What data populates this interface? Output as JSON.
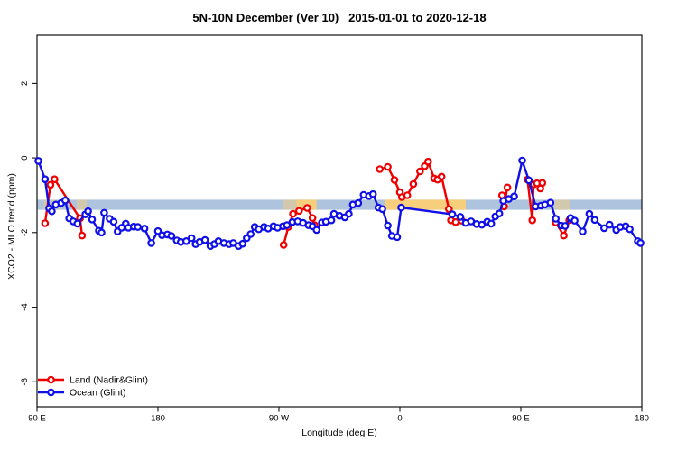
{
  "title": "5N-10N December (Ver 10)   2015-01-01 to 2020-12-18",
  "chart_data": {
    "type": "line",
    "title": "5N-10N December (Ver 10)   2015-01-01 to 2020-12-18",
    "xlabel": "Longitude (deg E)",
    "ylabel": "XCO2 - MLO trend (ppm)",
    "xlim": [
      90,
      540
    ],
    "ylim": [
      -6.67,
      3.29
    ],
    "grid": false,
    "x_ticks": [
      {
        "v": 90,
        "label": "90 E"
      },
      {
        "v": 180,
        "label": "180"
      },
      {
        "v": 270,
        "label": "90 W"
      },
      {
        "v": 360,
        "label": "0"
      },
      {
        "v": 450,
        "label": "90 E"
      },
      {
        "v": 540,
        "label": "180"
      }
    ],
    "y_ticks": [
      {
        "v": 2,
        "label": "2"
      },
      {
        "v": 0,
        "label": "0"
      },
      {
        "v": -2,
        "label": "-2"
      },
      {
        "v": -4,
        "label": "-4"
      },
      {
        "v": -6,
        "label": "-6"
      }
    ],
    "geo_band": {
      "description": "world coastline strip at 5N-10N drawn across plot",
      "value_top": -1.12,
      "value_bottom": -1.39,
      "ocean_color": "#aec3de",
      "land_color": "#f6ce7c",
      "land_segments": [
        [
          283,
          298
        ],
        [
          348.5,
          409
        ]
      ],
      "faint_land_segments": [
        [
          95,
          99
        ],
        [
          100.5,
          104
        ],
        [
          105.5,
          108
        ],
        [
          119.5,
          127
        ],
        [
          273,
          283
        ],
        [
          475,
          487
        ]
      ]
    },
    "legend": {
      "position": "bottom-left",
      "entries": [
        "Land (Nadir&Glint)",
        "Ocean (Glint)"
      ]
    },
    "series": [
      {
        "name": "Land (Nadir&Glint)",
        "color": "#ee0000",
        "marker": "open-circle",
        "points": [
          [
            96,
            -1.75
          ],
          [
            100,
            -0.72
          ],
          [
            103,
            -0.57
          ],
          [
            122,
            -1.62
          ],
          [
            123.5,
            -2.08
          ],
          null,
          [
            273.5,
            -2.33
          ],
          [
            277,
            -1.85
          ],
          [
            280.5,
            -1.5
          ],
          [
            285,
            -1.42
          ],
          [
            291,
            -1.34
          ],
          [
            295,
            -1.61
          ],
          [
            296.5,
            -1.8
          ],
          null,
          [
            345,
            -0.3
          ],
          [
            351,
            -0.24
          ],
          [
            356,
            -0.59
          ],
          [
            360,
            -0.92
          ],
          [
            361.5,
            -1.05
          ],
          [
            365.5,
            -1.0
          ],
          [
            370,
            -0.7
          ],
          [
            375,
            -0.36
          ],
          [
            378.5,
            -0.22
          ],
          [
            381,
            -0.1
          ],
          [
            385.5,
            -0.55
          ],
          [
            388,
            -0.58
          ],
          [
            391,
            -0.5
          ],
          [
            396.5,
            -1.37
          ],
          [
            398,
            -1.67
          ],
          [
            401.5,
            -1.72
          ],
          [
            406,
            -1.68
          ],
          null,
          [
            436,
            -1.0
          ],
          [
            437.5,
            -1.3
          ],
          [
            440,
            -0.79
          ],
          null,
          [
            455,
            -0.58
          ],
          [
            458.5,
            -1.67
          ],
          [
            459.5,
            -0.71
          ],
          [
            462,
            -0.68
          ],
          [
            464.5,
            -0.82
          ],
          [
            466,
            -0.67
          ],
          null,
          [
            476,
            -1.73
          ],
          [
            482,
            -2.08
          ],
          [
            486,
            -1.67
          ]
        ]
      },
      {
        "name": "Ocean (Glint)",
        "color": "#0f0fe8",
        "marker": "open-circle",
        "points": [
          [
            91,
            -0.08
          ],
          [
            96,
            -0.57
          ],
          [
            99,
            -1.35
          ],
          [
            101,
            -1.43
          ],
          [
            104,
            -1.25
          ],
          [
            108,
            -1.21
          ],
          [
            111,
            -1.14
          ],
          [
            114,
            -1.62
          ],
          [
            117,
            -1.7
          ],
          [
            120,
            -1.76
          ],
          [
            126,
            -1.51
          ],
          [
            128,
            -1.43
          ],
          [
            131,
            -1.65
          ],
          [
            136,
            -1.95
          ],
          [
            138,
            -2.0
          ],
          [
            140,
            -1.47
          ],
          [
            144,
            -1.63
          ],
          [
            147,
            -1.71
          ],
          [
            150,
            -1.97
          ],
          [
            153,
            -1.87
          ],
          [
            156,
            -1.76
          ],
          [
            158,
            -1.87
          ],
          [
            162,
            -1.84
          ],
          [
            165,
            -1.85
          ],
          [
            170,
            -1.89
          ],
          [
            175,
            -2.28
          ],
          [
            180,
            -1.96
          ],
          [
            183,
            -2.07
          ],
          [
            187,
            -2.05
          ],
          [
            190,
            -2.09
          ],
          [
            194,
            -2.21
          ],
          [
            197,
            -2.25
          ],
          [
            201,
            -2.23
          ],
          [
            205,
            -2.15
          ],
          [
            208,
            -2.31
          ],
          [
            211,
            -2.25
          ],
          [
            215,
            -2.2
          ],
          [
            219,
            -2.36
          ],
          [
            222,
            -2.31
          ],
          [
            225,
            -2.23
          ],
          [
            229,
            -2.28
          ],
          [
            233,
            -2.31
          ],
          [
            236,
            -2.28
          ],
          [
            240,
            -2.36
          ],
          [
            243,
            -2.3
          ],
          [
            246,
            -2.15
          ],
          [
            249,
            -2.04
          ],
          [
            252,
            -1.85
          ],
          [
            255,
            -1.91
          ],
          [
            259,
            -1.85
          ],
          [
            262,
            -1.89
          ],
          [
            266,
            -1.83
          ],
          [
            269,
            -1.87
          ],
          [
            273,
            -1.83
          ],
          [
            276,
            -1.8
          ],
          [
            280,
            -1.72
          ],
          [
            284,
            -1.7
          ],
          [
            288,
            -1.74
          ],
          [
            292,
            -1.8
          ],
          [
            295,
            -1.83
          ],
          [
            298,
            -1.93
          ],
          [
            302,
            -1.73
          ],
          [
            305,
            -1.71
          ],
          [
            309,
            -1.67
          ],
          [
            311,
            -1.5
          ],
          [
            315,
            -1.55
          ],
          [
            319,
            -1.59
          ],
          [
            322,
            -1.5
          ],
          [
            325,
            -1.25
          ],
          [
            329,
            -1.21
          ],
          [
            333,
            -0.99
          ],
          [
            337,
            -1.02
          ],
          [
            340,
            -0.97
          ],
          [
            344,
            -1.33
          ],
          [
            347,
            -1.37
          ],
          [
            351,
            -1.81
          ],
          [
            354,
            -2.09
          ],
          [
            358,
            -2.12
          ],
          [
            361,
            -1.33
          ],
          [
            399,
            -1.51
          ],
          [
            405,
            -1.58
          ],
          [
            409,
            -1.74
          ],
          [
            413,
            -1.7
          ],
          [
            417,
            -1.77
          ],
          [
            421,
            -1.79
          ],
          [
            425,
            -1.71
          ],
          [
            428,
            -1.76
          ],
          [
            431,
            -1.57
          ],
          [
            434,
            -1.49
          ],
          [
            437,
            -1.15
          ],
          [
            441,
            -1.1
          ],
          [
            445,
            -1.03
          ],
          [
            451,
            -0.07
          ],
          [
            456,
            -0.6
          ],
          [
            461,
            -1.3
          ],
          [
            465,
            -1.28
          ],
          [
            468,
            -1.25
          ],
          [
            472,
            -1.2
          ],
          [
            476,
            -1.63
          ],
          [
            480,
            -1.81
          ],
          [
            483,
            -1.82
          ],
          [
            487,
            -1.61
          ],
          [
            490,
            -1.68
          ],
          [
            496,
            -1.97
          ],
          [
            501,
            -1.5
          ],
          [
            505,
            -1.66
          ],
          [
            512,
            -1.88
          ],
          [
            516,
            -1.79
          ],
          [
            521,
            -1.93
          ],
          [
            524,
            -1.85
          ],
          [
            528,
            -1.83
          ],
          [
            531,
            -1.91
          ],
          [
            537,
            -2.23
          ],
          [
            539,
            -2.28
          ]
        ]
      }
    ]
  }
}
